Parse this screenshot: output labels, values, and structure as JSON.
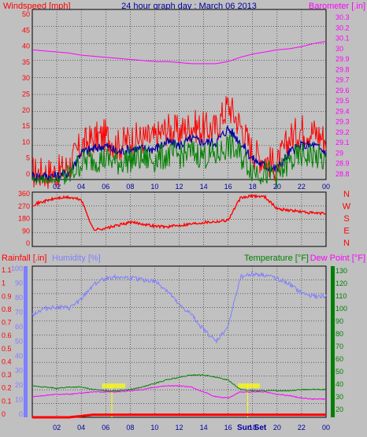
{
  "title": "24 hour graph day : March 06 2013",
  "colors": {
    "windspeed": "#ff0000",
    "wind_avg": "#0000a0",
    "wind_low": "#008000",
    "barometer": "#ff00ff",
    "direction": "#ff0000",
    "humidity": "#7f7fff",
    "temperature": "#008000",
    "dewpoint": "#ff00ff",
    "rainfall": "#ff0000",
    "grid": "#000000",
    "highlight": "#ffff00"
  },
  "x_ticks": [
    "02",
    "04",
    "06",
    "08",
    "10",
    "12",
    "14",
    "16",
    "18",
    "20",
    "22",
    "00"
  ],
  "chart_data": [
    {
      "type": "line",
      "panel": "wind-barometer",
      "left_axis_title": "Windspeed [mph]",
      "right_axis_title": "Barometer [.in]",
      "left_ticks": [
        "50",
        "45",
        "40",
        "35",
        "30",
        "25",
        "20",
        "15",
        "10",
        "5",
        "0"
      ],
      "right_ticks": [
        "30.3",
        "30.2",
        "30.1",
        "30",
        "29.9",
        "29.8",
        "29.7",
        "29.6",
        "29.5",
        "29.4",
        "29.3",
        "29.2",
        "29.1",
        "29",
        "28.9",
        "28.8"
      ],
      "ylim_left": [
        0,
        50
      ],
      "ylim_right": [
        28.75,
        30.35
      ],
      "x": [
        0,
        1,
        2,
        3,
        4,
        5,
        6,
        7,
        8,
        9,
        10,
        11,
        12,
        13,
        14,
        15,
        16,
        17,
        18,
        19,
        20,
        21,
        22,
        23,
        24
      ],
      "series": [
        {
          "key": "windspeed",
          "values": [
            2,
            2,
            2,
            4,
            10,
            12,
            13,
            10,
            12,
            12,
            12,
            15,
            14,
            16,
            15,
            15,
            22,
            16,
            8,
            6,
            4,
            12,
            15,
            14,
            12
          ]
        },
        {
          "key": "wind_avg",
          "values": [
            1,
            1,
            1,
            2,
            8,
            9,
            10,
            8,
            9,
            9,
            9,
            11,
            10,
            12,
            11,
            11,
            15,
            11,
            6,
            4,
            3,
            8,
            10,
            10,
            8
          ]
        },
        {
          "key": "wind_low",
          "values": [
            0,
            0,
            0,
            1,
            5,
            6,
            6,
            5,
            6,
            6,
            6,
            7,
            7,
            8,
            7,
            7,
            10,
            7,
            3,
            2,
            1,
            5,
            7,
            7,
            5
          ]
        },
        {
          "key": "barometer",
          "values": [
            29.97,
            29.96,
            29.95,
            29.94,
            29.92,
            29.91,
            29.9,
            29.89,
            29.88,
            29.87,
            29.86,
            29.86,
            29.85,
            29.84,
            29.84,
            29.84,
            29.86,
            29.9,
            29.93,
            29.95,
            29.97,
            29.98,
            30.0,
            30.03,
            30.05
          ]
        }
      ]
    },
    {
      "type": "line",
      "panel": "wind-direction",
      "left_ticks": [
        "360",
        "270",
        "180",
        "90",
        "0"
      ],
      "right_labels": [
        "N",
        "W",
        "S",
        "E",
        "N"
      ],
      "ylim": [
        0,
        360
      ],
      "x": [
        0,
        1,
        2,
        3,
        4,
        5,
        6,
        7,
        8,
        9,
        10,
        11,
        12,
        13,
        14,
        15,
        16,
        17,
        18,
        19,
        20,
        21,
        22,
        23,
        24
      ],
      "series": [
        {
          "key": "direction",
          "values": [
            275,
            300,
            320,
            325,
            310,
            110,
            120,
            140,
            160,
            150,
            135,
            130,
            140,
            150,
            160,
            165,
            175,
            320,
            335,
            330,
            250,
            240,
            230,
            220,
            218
          ]
        }
      ]
    },
    {
      "type": "line",
      "panel": "humidity-temperature-rain",
      "rain_axis_title": "Rainfall [.in]",
      "humidity_axis_title": "Humidity [%]",
      "temperature_axis_title": "Temperature [°F]",
      "dewpoint_axis_title": "Dew Point [°F]",
      "rain_ticks": [
        "1.1",
        "1",
        "0.9",
        "0.8",
        "0.7",
        "0.6",
        "0.5",
        "0.4",
        "0.3",
        "0.2",
        "0.1",
        "0"
      ],
      "humidity_ticks": [
        "100",
        "90",
        "80",
        "70",
        "60",
        "50",
        "40",
        "30",
        "20",
        "10",
        "0"
      ],
      "temperature_ticks": [
        "130",
        "120",
        "110",
        "100",
        "90",
        "80",
        "70",
        "60",
        "50",
        "40",
        "30",
        "20"
      ],
      "ylim_humidity": [
        0,
        100
      ],
      "ylim_temperature": [
        10,
        135
      ],
      "ylim_rain": [
        0,
        1.15
      ],
      "x": [
        0,
        1,
        2,
        3,
        4,
        5,
        6,
        7,
        8,
        9,
        10,
        11,
        12,
        13,
        14,
        15,
        16,
        17,
        18,
        19,
        20,
        21,
        22,
        23,
        24
      ],
      "series": [
        {
          "key": "humidity",
          "values": [
            68,
            72,
            73,
            72,
            78,
            88,
            92,
            93,
            92,
            91,
            90,
            84,
            74,
            68,
            58,
            50,
            60,
            93,
            95,
            94,
            92,
            88,
            82,
            80,
            80
          ]
        },
        {
          "key": "temperature",
          "values": [
            36,
            35,
            34,
            35,
            35,
            33,
            32,
            32,
            33,
            35,
            38,
            41,
            43,
            45,
            45,
            43,
            41,
            33,
            32,
            32,
            32,
            32,
            33,
            33,
            33
          ]
        },
        {
          "key": "dewpoint",
          "values": [
            27,
            28,
            29,
            29,
            30,
            31,
            31,
            31,
            32,
            33,
            35,
            36,
            36,
            35,
            31,
            27,
            26,
            31,
            31,
            31,
            29,
            28,
            26,
            25,
            25
          ]
        },
        {
          "key": "rainfall",
          "values": [
            0,
            0,
            0,
            0,
            0.01,
            0.02,
            0.02,
            0.02,
            0.02,
            0.02,
            0.02,
            0.02,
            0.02,
            0.02,
            0.02,
            0.02,
            0.02,
            0.02,
            0.02,
            0.02,
            0.02,
            0.02,
            0.02,
            0.02,
            0.02
          ]
        }
      ],
      "annotation": "Sun Set"
    }
  ]
}
